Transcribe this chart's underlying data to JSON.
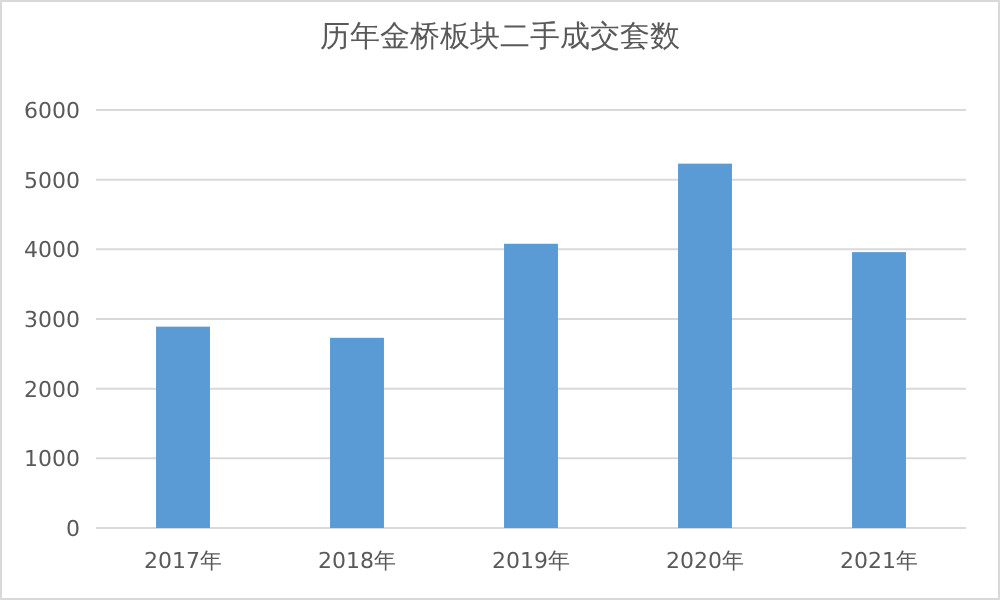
{
  "chart_data": {
    "type": "bar",
    "title": "历年金桥板块二手成交套数",
    "categories": [
      "2017年",
      "2018年",
      "2019年",
      "2020年",
      "2021年"
    ],
    "values": [
      2890,
      2730,
      4080,
      5230,
      3960
    ],
    "color": "#5b9bd5",
    "ylim": [
      0,
      6000
    ],
    "yticks": [
      0,
      1000,
      2000,
      3000,
      4000,
      5000,
      6000
    ],
    "grid": "y"
  }
}
